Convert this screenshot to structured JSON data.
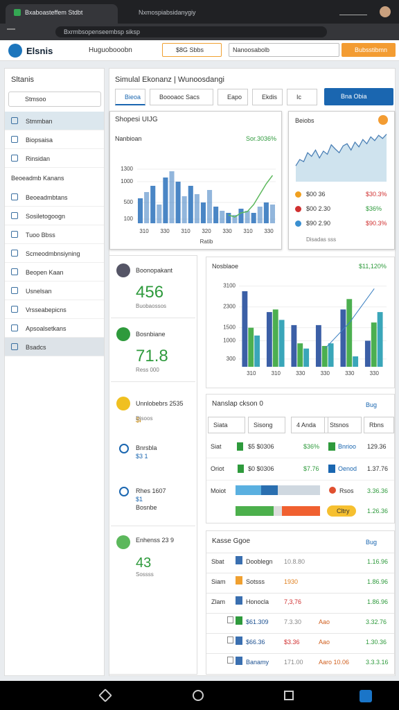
{
  "browser": {
    "tabs": [
      "Bxaboasteffem Stdbt",
      "Nxmospiabsidanygiy"
    ],
    "url": "Bxrmbsopenseembsp siksp"
  },
  "header": {
    "brand": "Elsnis",
    "nav": "Huguobooobn",
    "filter": "$8G Sbbs",
    "search": "Nanoosabolb",
    "button": "Bubsstibmn"
  },
  "sidebar": {
    "title": "Sltanis",
    "search": "Stmsoo",
    "items": [
      "Stmmban",
      "Biopsaisa",
      "Rinsidan"
    ],
    "section": "Beoeadmb Kanans",
    "items2": [
      "Beoeadmbtans",
      "Sosiletogoogn",
      "Tuoo Bbss",
      "Scmeodmbnsiyning",
      "Beopen Kaan",
      "Usnelsan",
      "Vrsseabepicns",
      "Apsoalsetkans",
      "Bsadcs"
    ]
  },
  "main": {
    "title": "Simulal Ekonanz | Wunoosdangi",
    "tabs": [
      "Bieoa",
      "Boooaoc Sacs",
      "Eapo",
      "Ekdis",
      "Ic"
    ],
    "button": "Bna Obia"
  },
  "chart1": {
    "title": "Shopesi UIJG",
    "subtitle": "Nanbioan",
    "delta": "Sor.3036%",
    "color": "#4a86c5",
    "line_color": "#5cb85c",
    "values": [
      600,
      750,
      900,
      450,
      1100,
      1250,
      1000,
      650,
      900,
      700,
      500,
      800,
      400,
      300,
      250,
      200,
      350,
      300,
      250,
      400,
      500,
      450
    ],
    "line": [
      null,
      null,
      null,
      null,
      null,
      null,
      null,
      null,
      null,
      null,
      null,
      null,
      null,
      null,
      200,
      150,
      250,
      280,
      450,
      700,
      950,
      1150
    ],
    "ylim": [
      0,
      1500
    ],
    "yticks": [
      100,
      500,
      1000,
      1300
    ],
    "xlabels": [
      "310",
      "330",
      "310",
      "320",
      "330",
      "310",
      "330"
    ],
    "xlabel": "Ratib"
  },
  "spark": {
    "title": "Beiobs",
    "color": "#4a7fb5",
    "values": [
      30,
      42,
      38,
      55,
      48,
      60,
      45,
      58,
      52,
      70,
      62,
      55,
      68,
      72,
      60,
      75,
      66,
      80,
      72,
      85,
      78,
      88,
      82,
      90
    ],
    "ylim": [
      0,
      100
    ],
    "legend": [
      {
        "label": "$00 36",
        "value": "$30.3%"
      },
      {
        "label": "$00 2.30",
        "value": "$36%"
      },
      {
        "label": "$90 2.90",
        "value": "$90.3%"
      }
    ],
    "note": "Disadas sss"
  },
  "stats": [
    {
      "title": "Boonopakant",
      "value": 456,
      "sub": "Buobaossos"
    },
    {
      "title": "Bosnbiane",
      "value": 71.8,
      "sub": "Ress 000"
    },
    {
      "title": "Unnlobebrs 2535",
      "value": "$i",
      "sub": "Disoos"
    }
  ],
  "checks": [
    {
      "title": "Bnrsbla",
      "value": "$3 1"
    },
    {
      "title": "Rhes 1607",
      "value": "$1",
      "sub": "Bosnbe"
    }
  ],
  "stat5": {
    "title": "Enhenss 23 9",
    "value": 43,
    "sub": "Sossss"
  },
  "chart2": {
    "title": "Nosblaoe",
    "delta": "$11,120%",
    "series": [
      {
        "color": "#3b5fa6",
        "values": [
          2900,
          2100,
          1600,
          1600,
          2200,
          1000
        ]
      },
      {
        "color": "#4caf50",
        "values": [
          1500,
          2200,
          900,
          800,
          2600,
          1700
        ]
      },
      {
        "color": "#3aa6b9",
        "values": [
          1200,
          1800,
          700,
          900,
          400,
          2100
        ]
      }
    ],
    "line": [
      null,
      null,
      null,
      700,
      1700,
      3000
    ],
    "line_color": "#3a7fc1",
    "ylim": [
      0,
      3300
    ],
    "yticks": [
      300,
      1000,
      1500,
      2300,
      3100
    ],
    "xlabels": [
      "310",
      "310",
      "330",
      "330",
      "330",
      "330"
    ]
  },
  "table1": {
    "title": "Nanslap ckson 0",
    "link": "Bug",
    "columns": [
      "Siata",
      "Sisong",
      "4 Anda",
      "Stsnos",
      "Rbns"
    ],
    "rows": [
      [
        "Siat",
        "$5 $0306",
        "$36%",
        "Bnrioo",
        "129.36"
      ],
      [
        "Oriot",
        "$0 $0306",
        "$7.76",
        "Oenod",
        "1.37.76"
      ],
      [
        "Moiot",
        "Rsos",
        "3.36.36"
      ],
      [
        "Cltry",
        "1.26.36"
      ]
    ],
    "bars": [
      [
        30,
        20,
        50
      ],
      [
        45,
        10,
        45
      ]
    ]
  },
  "table2": {
    "title": "Kasse Ggoe",
    "link": "Bug",
    "rows": [
      [
        "Sbat",
        "Dooblegn",
        "10.8.80",
        "1.16.96"
      ],
      [
        "Siam",
        "Sotsss",
        "1930",
        "1.86.96"
      ],
      [
        "Zlam",
        "Honocla",
        "7,3,76",
        "1.86.96"
      ],
      [
        "$61.309",
        "7.3.30",
        "Aao",
        "3.32.76"
      ],
      [
        "$66.36",
        "$3.36",
        "Aao",
        "1.30.36"
      ],
      [
        "Banamy",
        "171.00",
        "Aaro 10.06",
        "3.3.3.16"
      ]
    ]
  }
}
